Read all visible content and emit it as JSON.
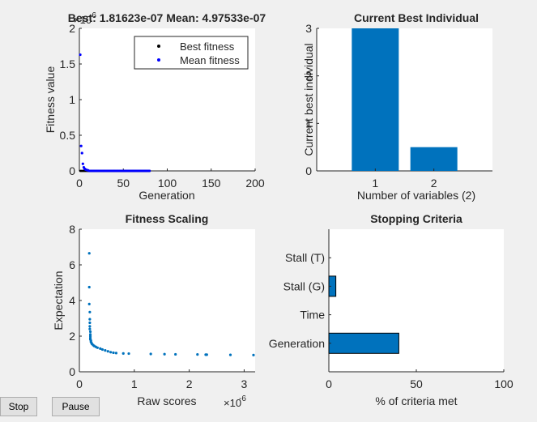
{
  "buttons": {
    "stop": "Stop",
    "pause": "Pause"
  },
  "colors": {
    "best": "#000000",
    "mean": "#0000ff",
    "bar": "#0072bd",
    "axis": "#262626",
    "background": "#f0f0f0",
    "plot_bg": "#ffffff"
  },
  "chart_data": [
    {
      "id": "fitness",
      "type": "scatter",
      "title": "Best: 1.81623e-07 Mean: 4.97533e-07",
      "xlabel": "Generation",
      "ylabel": "Fitness value",
      "xlim": [
        0,
        200
      ],
      "ylim": [
        0,
        2
      ],
      "y_exponent_label": "×10",
      "y_exponent": "-6",
      "xticks": [
        0,
        50,
        100,
        150,
        200
      ],
      "yticks": [
        0,
        0.5,
        1,
        1.5,
        2
      ],
      "legend": {
        "placement": "top-right",
        "entries": [
          "Best fitness",
          "Mean fitness"
        ]
      },
      "series": [
        {
          "name": "Best fitness",
          "color": "#000000",
          "x_range": [
            1,
            80
          ],
          "y": 2e-07
        },
        {
          "name": "Mean fitness",
          "color": "#0000ff",
          "points": [
            [
              1,
              1.63
            ],
            [
              2,
              0.35
            ],
            [
              3,
              0.25
            ],
            [
              4,
              0.1
            ],
            [
              5,
              0.05
            ],
            [
              6,
              0.03
            ],
            [
              7,
              0.02
            ],
            [
              8,
              0.015
            ],
            [
              9,
              0.01
            ],
            [
              10,
              0.008
            ]
          ],
          "tail_range": [
            11,
            80
          ],
          "tail_y": 0.0005
        }
      ]
    },
    {
      "id": "best-individual",
      "type": "bar",
      "title": "Current Best Individual",
      "xlabel": "Number of variables (2)",
      "ylabel": "Current best individual",
      "categories": [
        "1",
        "2"
      ],
      "values": [
        3,
        0.5
      ],
      "ylim": [
        0,
        3
      ],
      "yticks": [
        0,
        1,
        2,
        3
      ]
    },
    {
      "id": "fitness-scaling",
      "type": "scatter",
      "title": "Fitness Scaling",
      "xlabel": "Raw scores",
      "ylabel": "Expectation",
      "xlim": [
        0,
        3.2
      ],
      "ylim": [
        0,
        8
      ],
      "x_exponent_label": "×10",
      "x_exponent": "-6",
      "xticks": [
        0,
        1,
        2,
        3
      ],
      "yticks": [
        0,
        2,
        4,
        6,
        8
      ],
      "points": [
        [
          0.18,
          6.65
        ],
        [
          0.18,
          4.75
        ],
        [
          0.18,
          3.8
        ],
        [
          0.19,
          3.35
        ],
        [
          0.19,
          2.95
        ],
        [
          0.19,
          2.75
        ],
        [
          0.19,
          2.55
        ],
        [
          0.19,
          2.4
        ],
        [
          0.2,
          2.25
        ],
        [
          0.2,
          2.1
        ],
        [
          0.2,
          2.0
        ],
        [
          0.2,
          1.9
        ],
        [
          0.2,
          1.82
        ],
        [
          0.21,
          1.75
        ],
        [
          0.21,
          1.68
        ],
        [
          0.22,
          1.62
        ],
        [
          0.23,
          1.56
        ],
        [
          0.25,
          1.5
        ],
        [
          0.27,
          1.45
        ],
        [
          0.3,
          1.4
        ],
        [
          0.33,
          1.35
        ],
        [
          0.38,
          1.3
        ],
        [
          0.42,
          1.25
        ],
        [
          0.47,
          1.2
        ],
        [
          0.52,
          1.15
        ],
        [
          0.57,
          1.1
        ],
        [
          0.62,
          1.07
        ],
        [
          0.67,
          1.05
        ],
        [
          0.8,
          1.03
        ],
        [
          0.9,
          1.02
        ],
        [
          1.3,
          1.0
        ],
        [
          1.55,
          0.99
        ],
        [
          1.75,
          0.98
        ],
        [
          2.15,
          0.97
        ],
        [
          2.3,
          0.96
        ],
        [
          2.32,
          0.96
        ],
        [
          2.75,
          0.95
        ],
        [
          3.17,
          0.94
        ]
      ]
    },
    {
      "id": "stopping-criteria",
      "type": "bar",
      "orientation": "horizontal",
      "title": "Stopping Criteria",
      "xlabel": "% of criteria met",
      "categories": [
        "Generation",
        "Time",
        "Stall (G)",
        "Stall (T)"
      ],
      "values": [
        40,
        0,
        4,
        0
      ],
      "xlim": [
        0,
        100
      ],
      "xticks": [
        0,
        50,
        100
      ]
    }
  ]
}
